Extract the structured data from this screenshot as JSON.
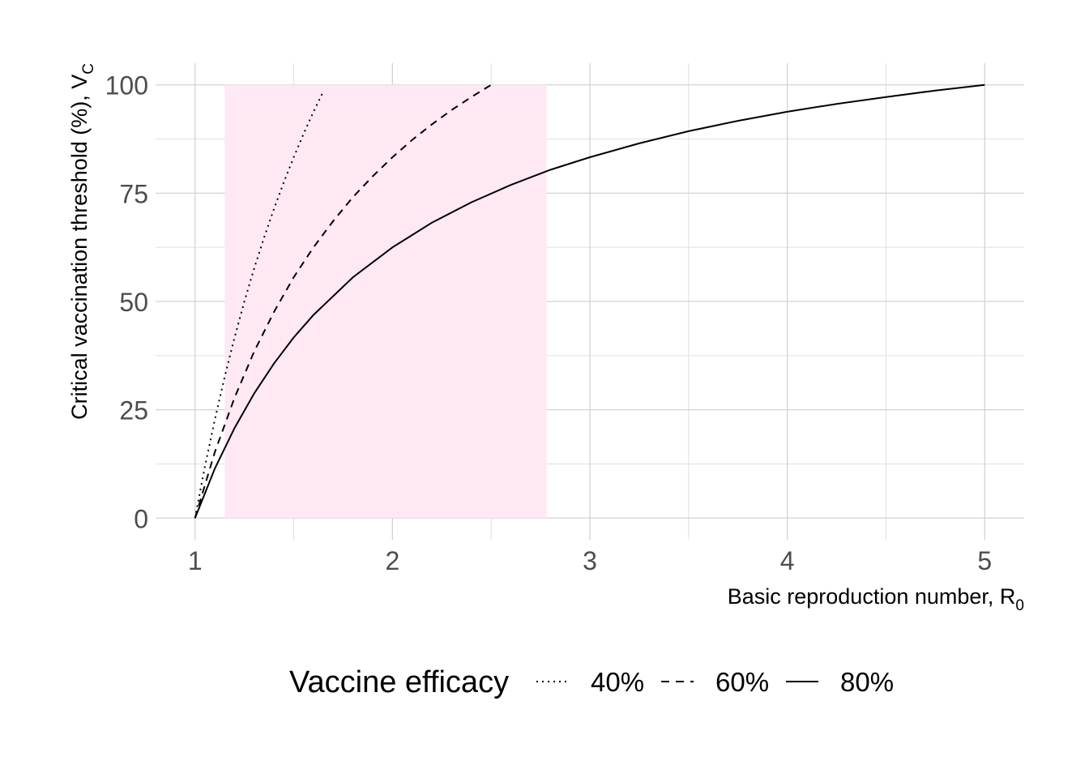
{
  "chart_data": {
    "type": "line",
    "xlabel": "Basic reproduction number, R",
    "xlabel_sub": "0",
    "ylabel": "Critical vaccination threshold (%), V",
    "ylabel_sub": "C",
    "xlim": [
      0.8,
      5.2
    ],
    "ylim": [
      -5,
      105
    ],
    "x_ticks": [
      1,
      2,
      3,
      4,
      5
    ],
    "y_ticks": [
      0,
      25,
      50,
      75,
      100
    ],
    "x_tick_labels": [
      "1",
      "2",
      "3",
      "4",
      "5"
    ],
    "y_tick_labels": [
      "0",
      "25",
      "50",
      "75",
      "100"
    ],
    "grid": true,
    "shaded_region": {
      "x_start": 1.15,
      "x_end": 2.78,
      "y_start": 0,
      "y_end": 100,
      "color": "#fde8f3"
    },
    "legend": {
      "title": "Vaccine efficacy",
      "position": "bottom",
      "entries": [
        {
          "label": "40%",
          "linetype": "dotted"
        },
        {
          "label": "60%",
          "linetype": "dashed"
        },
        {
          "label": "80%",
          "linetype": "solid"
        }
      ]
    },
    "series": [
      {
        "efficacy": 0.4,
        "linetype": "dotted",
        "x": [
          1.0,
          1.05,
          1.1,
          1.15,
          1.2,
          1.25,
          1.3,
          1.35,
          1.4,
          1.45,
          1.5,
          1.55,
          1.6,
          1.65
        ],
        "y": [
          0,
          11.9,
          22.7,
          32.6,
          41.7,
          50.0,
          57.7,
          64.8,
          71.4,
          77.6,
          83.3,
          88.7,
          93.8,
          98.5
        ]
      },
      {
        "efficacy": 0.6,
        "linetype": "dashed",
        "x": [
          1.0,
          1.1,
          1.2,
          1.3,
          1.4,
          1.5,
          1.6,
          1.7,
          1.8,
          1.9,
          2.0,
          2.1,
          2.2,
          2.3,
          2.4,
          2.5
        ],
        "y": [
          0,
          15.2,
          27.8,
          38.5,
          47.6,
          55.6,
          62.5,
          68.6,
          74.1,
          78.9,
          83.3,
          87.3,
          90.9,
          94.2,
          97.2,
          100.0
        ]
      },
      {
        "efficacy": 0.8,
        "linetype": "solid",
        "x": [
          1.0,
          1.1,
          1.2,
          1.3,
          1.4,
          1.5,
          1.6,
          1.8,
          2.0,
          2.2,
          2.4,
          2.6,
          2.8,
          3.0,
          3.25,
          3.5,
          3.75,
          4.0,
          4.25,
          4.5,
          4.75,
          5.0
        ],
        "y": [
          0,
          11.4,
          20.8,
          28.8,
          35.7,
          41.7,
          46.9,
          55.6,
          62.5,
          68.2,
          72.9,
          76.9,
          80.4,
          83.3,
          86.5,
          89.3,
          91.7,
          93.8,
          95.6,
          97.2,
          98.7,
          100.0
        ]
      }
    ]
  }
}
